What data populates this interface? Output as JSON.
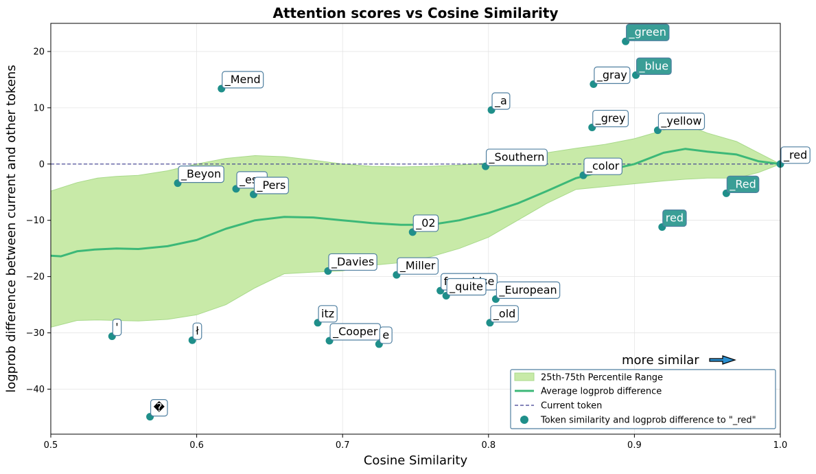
{
  "chart_data": {
    "type": "scatter",
    "title": "Attention scores vs Cosine Similarity",
    "xlabel": "Cosine Similarity",
    "ylabel": "logprob difference between current and other tokens",
    "xlim": [
      0.5,
      1.0
    ],
    "ylim": [
      -48,
      25
    ],
    "xticks": [
      0.5,
      0.6,
      0.7,
      0.8,
      0.9,
      1.0
    ],
    "xtick_labels": [
      "0.5",
      "0.6",
      "0.7",
      "0.8",
      "0.9",
      "1.0"
    ],
    "yticks": [
      -40,
      -30,
      -20,
      -10,
      0,
      10,
      20
    ],
    "ytick_labels": [
      "−40",
      "−30",
      "−20",
      "−10",
      "0",
      "10",
      "20"
    ],
    "grid": true,
    "annotation": "more similar",
    "current_token_y": 0,
    "legend": {
      "placement": "lower-right",
      "entries": [
        "25th-75th Percentile Range",
        "Average logprob difference",
        "Current token",
        "Token similarity and logprob difference to \"_red\""
      ]
    },
    "colors": {
      "band": "#c8eaa8",
      "band_edge": "#a8d98a",
      "avg_line": "#3cb878",
      "current_line": "#3b3b8f",
      "point": "#1f8f8a",
      "label_border": "#4f7fa0",
      "highlight_fill": "#3a9e96"
    },
    "band": {
      "x": [
        0.5,
        0.518,
        0.532,
        0.545,
        0.56,
        0.58,
        0.6,
        0.62,
        0.64,
        0.66,
        0.68,
        0.7,
        0.72,
        0.74,
        0.76,
        0.78,
        0.8,
        0.82,
        0.84,
        0.86,
        0.88,
        0.9,
        0.92,
        0.935,
        0.95,
        0.97,
        0.985,
        1.0
      ],
      "upper": [
        -4.8,
        -3.3,
        -2.5,
        -2.2,
        -2.0,
        -1.2,
        0.0,
        1.0,
        1.5,
        1.3,
        0.7,
        0.0,
        -0.4,
        -0.5,
        -0.4,
        -0.2,
        0.2,
        1.0,
        2.0,
        2.8,
        3.5,
        4.5,
        6.0,
        7.0,
        5.5,
        4.0,
        2.0,
        0.0
      ],
      "lower": [
        -29.0,
        -27.8,
        -27.7,
        -27.8,
        -27.9,
        -27.6,
        -26.8,
        -25.0,
        -22.0,
        -19.5,
        -19.2,
        -19.0,
        -18.0,
        -17.5,
        -16.5,
        -15.0,
        -13.0,
        -10.0,
        -7.0,
        -4.5,
        -4.0,
        -3.5,
        -3.0,
        -2.7,
        -2.5,
        -2.5,
        -1.5,
        0.0
      ]
    },
    "average": {
      "x": [
        0.5,
        0.507,
        0.518,
        0.53,
        0.545,
        0.56,
        0.58,
        0.6,
        0.62,
        0.64,
        0.66,
        0.68,
        0.7,
        0.72,
        0.74,
        0.76,
        0.78,
        0.8,
        0.82,
        0.84,
        0.86,
        0.88,
        0.9,
        0.92,
        0.935,
        0.95,
        0.97,
        0.985,
        1.0
      ],
      "y": [
        -16.3,
        -16.4,
        -15.5,
        -15.2,
        -15.0,
        -15.1,
        -14.6,
        -13.5,
        -11.5,
        -10.0,
        -9.4,
        -9.5,
        -10.0,
        -10.5,
        -10.8,
        -10.8,
        -10.0,
        -8.7,
        -7.0,
        -4.8,
        -2.5,
        -1.2,
        0.0,
        2.0,
        2.7,
        2.2,
        1.7,
        0.5,
        0.0
      ]
    },
    "points": [
      {
        "token": "_green",
        "x": 0.894,
        "y": 21.8,
        "highlight": true
      },
      {
        "token": "_blue",
        "x": 0.901,
        "y": 15.8,
        "highlight": true
      },
      {
        "token": "_gray",
        "x": 0.872,
        "y": 14.2,
        "highlight": false
      },
      {
        "token": "_Mend",
        "x": 0.617,
        "y": 13.4,
        "highlight": false
      },
      {
        "token": "_a",
        "x": 0.802,
        "y": 9.6,
        "highlight": false
      },
      {
        "token": "_grey",
        "x": 0.871,
        "y": 6.5,
        "highlight": false
      },
      {
        "token": "_yellow",
        "x": 0.916,
        "y": 6.0,
        "highlight": false
      },
      {
        "token": "_red",
        "x": 1.0,
        "y": 0.0,
        "highlight": false
      },
      {
        "token": "_Southern",
        "x": 0.798,
        "y": -0.4,
        "highlight": false
      },
      {
        "token": "_color",
        "x": 0.865,
        "y": -2.0,
        "highlight": false
      },
      {
        "token": "_Beyon",
        "x": 0.587,
        "y": -3.4,
        "highlight": false
      },
      {
        "token": "_esp",
        "x": 0.627,
        "y": -4.4,
        "highlight": false
      },
      {
        "token": "_Pers",
        "x": 0.639,
        "y": -5.4,
        "highlight": false
      },
      {
        "token": "_Red",
        "x": 0.963,
        "y": -5.2,
        "highlight": true
      },
      {
        "token": "red",
        "x": 0.919,
        "y": -11.2,
        "highlight": true
      },
      {
        "token": "_02",
        "x": 0.748,
        "y": -12.1,
        "highlight": false
      },
      {
        "token": "_Davies",
        "x": 0.69,
        "y": -19.0,
        "highlight": false
      },
      {
        "token": "_Miller",
        "x": 0.737,
        "y": -19.7,
        "highlight": false
      },
      {
        "token": "franchise",
        "x": 0.767,
        "y": -22.5,
        "highlight": false
      },
      {
        "token": "_quite",
        "x": 0.771,
        "y": -23.4,
        "highlight": false
      },
      {
        "token": "_European",
        "x": 0.805,
        "y": -24.0,
        "highlight": false
      },
      {
        "token": "itz",
        "x": 0.683,
        "y": -28.2,
        "highlight": false
      },
      {
        "token": "_old",
        "x": 0.801,
        "y": -28.2,
        "highlight": false
      },
      {
        "token": "'",
        "x": 0.542,
        "y": -30.6,
        "highlight": false
      },
      {
        "token": "ł",
        "x": 0.597,
        "y": -31.3,
        "highlight": false
      },
      {
        "token": "_Cooper",
        "x": 0.691,
        "y": -31.4,
        "highlight": false
      },
      {
        "token": "e",
        "x": 0.725,
        "y": -32.0,
        "highlight": false
      },
      {
        "token": "�",
        "x": 0.568,
        "y": -44.9,
        "highlight": false
      }
    ]
  }
}
